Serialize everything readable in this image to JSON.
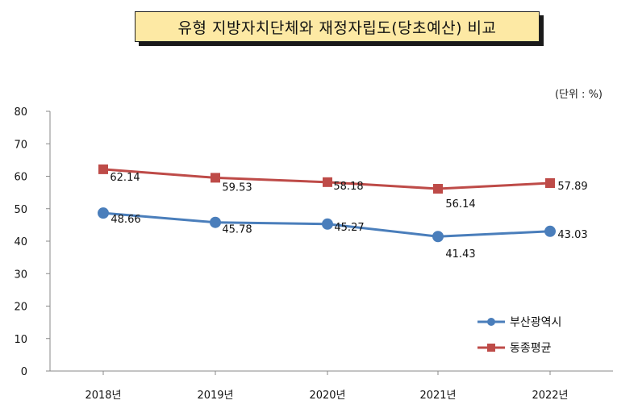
{
  "title": "유형 지방자치단체와 재정자립도(당초예산) 비교",
  "unit_label": "(단위 : %)",
  "colors": {
    "blue": "#4a7ebb",
    "red": "#be4b48",
    "axis": "#888888"
  },
  "chart_data": {
    "type": "line",
    "categories": [
      "2018년",
      "2019년",
      "2020년",
      "2021년",
      "2022년"
    ],
    "ylim": [
      0,
      80
    ],
    "yticks": [
      "0",
      "10",
      "20",
      "30",
      "40",
      "50",
      "60",
      "70",
      "80"
    ],
    "grid": false,
    "legend_position": "bottom-right",
    "series": [
      {
        "name": "부산광역시",
        "values": [
          48.66,
          45.78,
          45.27,
          41.43,
          43.03
        ],
        "labels": [
          "48.66",
          "45.78",
          "45.27",
          "41.43",
          "43.03"
        ],
        "color": "#4a7ebb",
        "marker": "circle"
      },
      {
        "name": "동종평균",
        "values": [
          62.14,
          59.53,
          58.18,
          56.14,
          57.89
        ],
        "labels": [
          "62.14",
          "59.53",
          "58.18",
          "56.14",
          "57.89"
        ],
        "color": "#be4b48",
        "marker": "square"
      }
    ]
  }
}
